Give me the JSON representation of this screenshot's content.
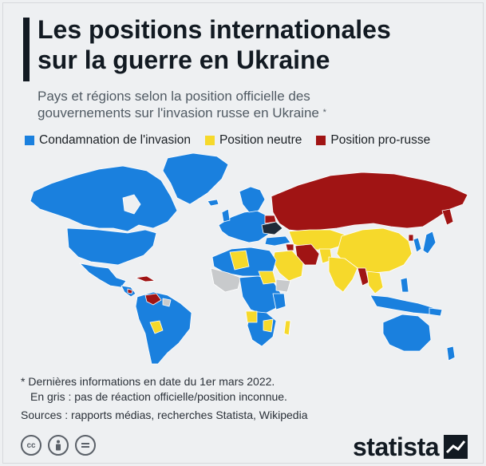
{
  "header": {
    "title_line1": "Les positions internationales",
    "title_line2": "sur la guerre en Ukraine",
    "subtitle_line1": "Pays et régions selon la position officielle des",
    "subtitle_line2": "gouvernements sur l'invasion russe en Ukraine",
    "subtitle_mark": "*"
  },
  "legend": [
    {
      "label": "Condamnation de l'invasion",
      "color": "#1a80de"
    },
    {
      "label": "Position neutre",
      "color": "#f6d92b"
    },
    {
      "label": "Position pro-russe",
      "color": "#a01414"
    }
  ],
  "colors": {
    "condemn": "#1a80de",
    "neutral": "#f6d92b",
    "prorussia": "#a01414",
    "unknown": "#c8cacc",
    "ukraine": "#1e2a38",
    "background": "#eef0f2",
    "border": "#ffffff"
  },
  "notes": {
    "line1": "* Dernières informations en date du 1er mars 2022.",
    "line2": "En gris : pas de réaction officielle/position inconnue.",
    "sources": "Sources : rapports médias, recherches Statista, Wikipedia"
  },
  "license_icons": [
    "cc-icon",
    "attribution-icon",
    "no-derivatives-icon"
  ],
  "brand": {
    "name": "statista"
  }
}
